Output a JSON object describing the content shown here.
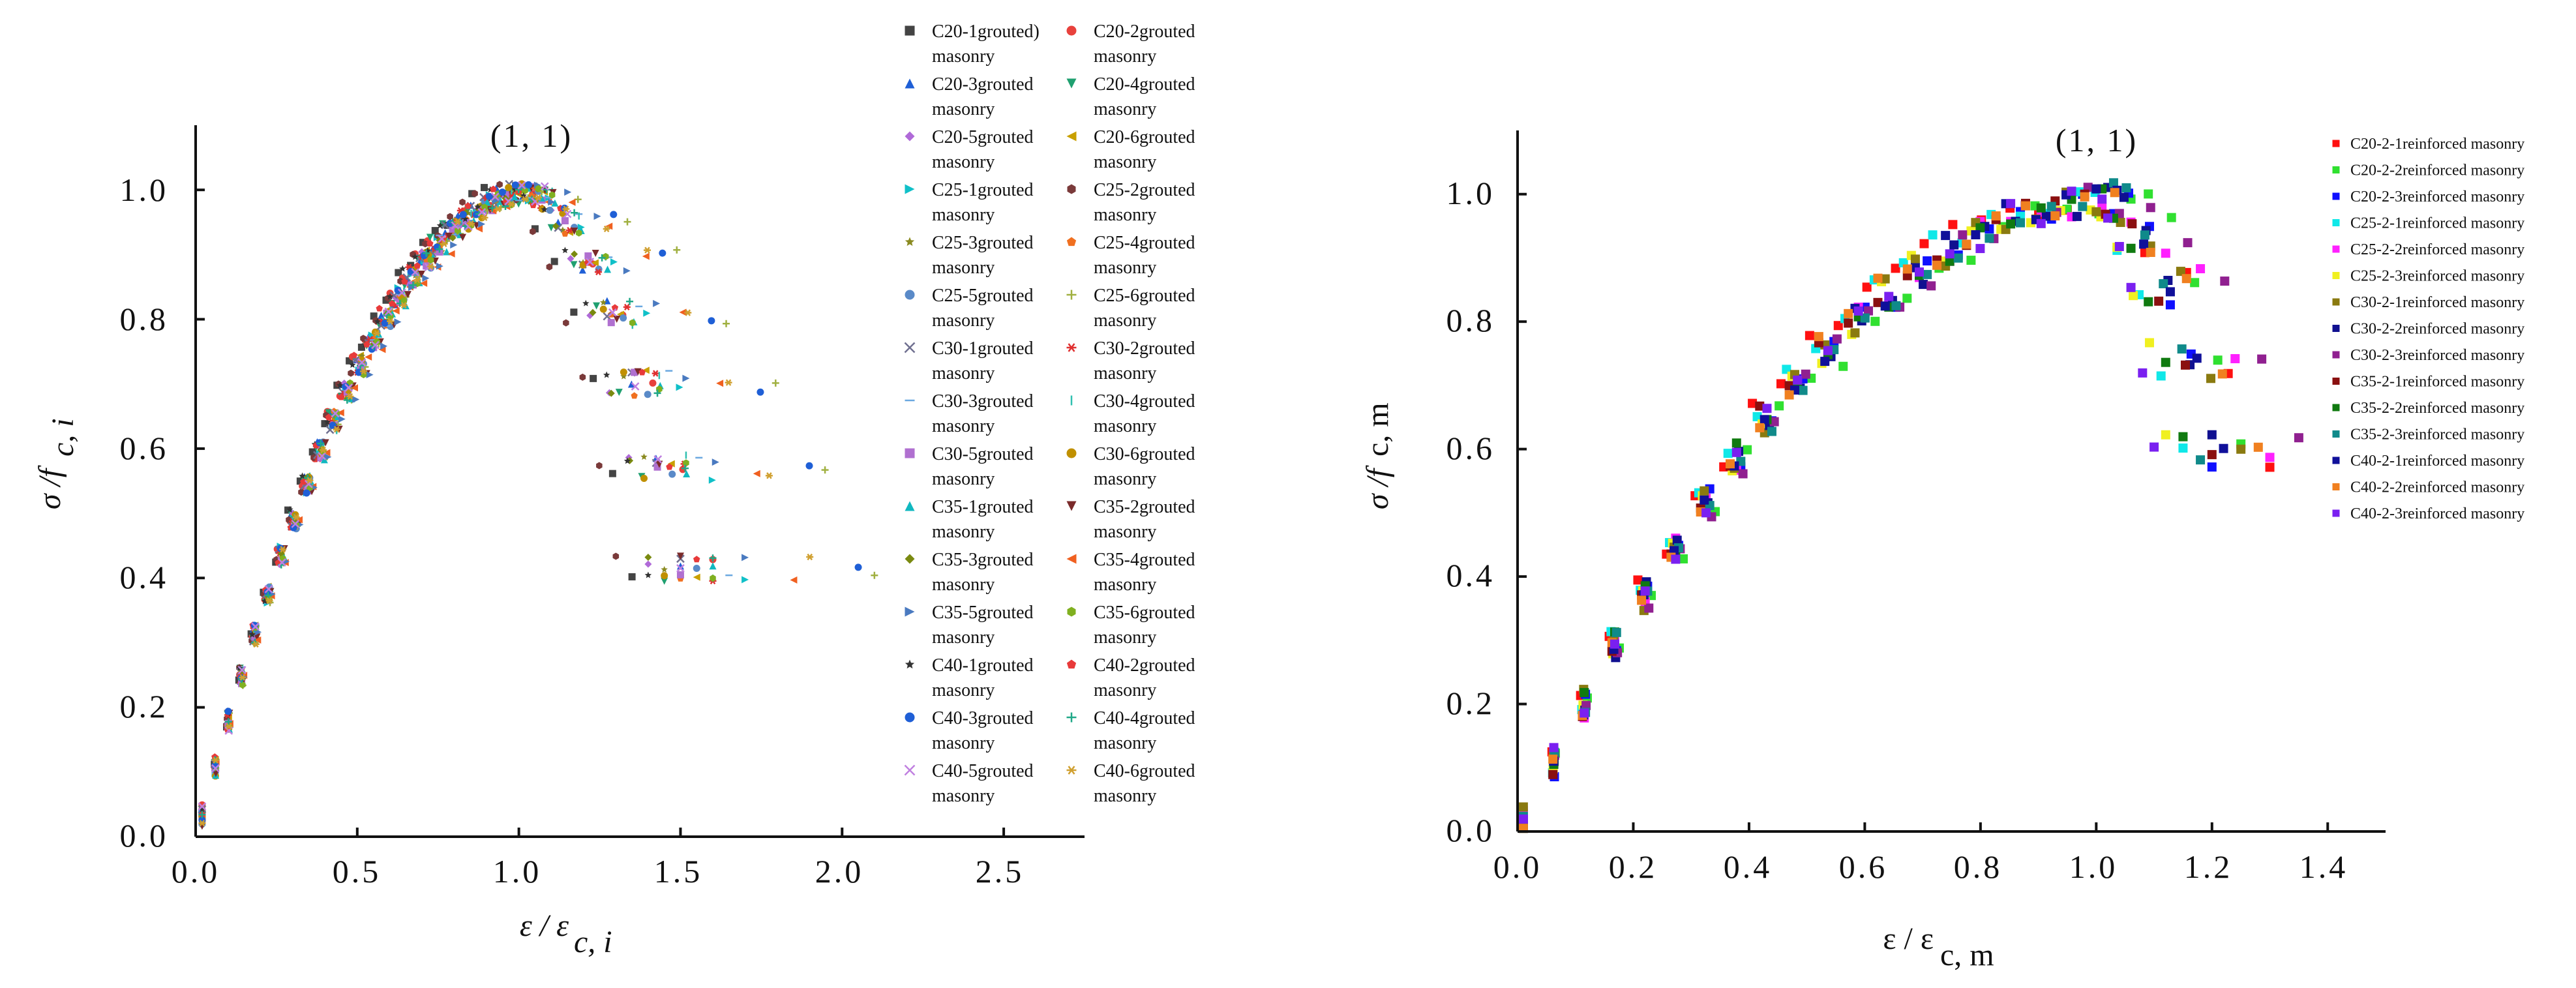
{
  "chart_data": [
    {
      "type": "scatter",
      "title": "(1, 1)",
      "xlabel": "ε / ε",
      "xlabel_sub": "c, i",
      "ylabel": "σ /f",
      "ylabel_sub": "c, i",
      "xlim": [
        0,
        2.75
      ],
      "ylim": [
        0,
        1.1
      ],
      "xticks": [
        "0.0",
        "0.5",
        "1.0",
        "1.5",
        "2.0",
        "2.5"
      ],
      "xtick_values": [
        0,
        0.5,
        1.0,
        1.5,
        2.0,
        2.5
      ],
      "yticks": [
        "0.0",
        "0.2",
        "0.4",
        "0.6",
        "0.8",
        "1.0"
      ],
      "ytick_values": [
        0,
        0.2,
        0.4,
        0.6,
        0.8,
        1.0
      ],
      "legend_position": "right, two columns",
      "series": [
        {
          "name": "C20-1grouted)",
          "line2": "masonry",
          "color": "#444444",
          "marker": "square",
          "peak": 0.93,
          "drop": 1.35
        },
        {
          "name": "C20-2grouted",
          "line2": "masonry",
          "color": "#e8413c",
          "marker": "circle",
          "peak": 0.95,
          "drop": 1.6
        },
        {
          "name": "C20-3grouted",
          "line2": "masonry",
          "color": "#1f5fd6",
          "marker": "triangle-up",
          "peak": 0.97,
          "drop": 1.5
        },
        {
          "name": "C20-4grouted",
          "line2": "masonry",
          "color": "#20a070",
          "marker": "triangle-down",
          "peak": 0.96,
          "drop": 1.45
        },
        {
          "name": "C20-5grouted",
          "line2": "masonry",
          "color": "#b06ad8",
          "marker": "diamond",
          "peak": 0.98,
          "drop": 1.4
        },
        {
          "name": "C20-6grouted",
          "line2": "masonry",
          "color": "#c9a000",
          "marker": "triangle-left",
          "peak": 1.0,
          "drop": 1.55
        },
        {
          "name": "C25-1grouted",
          "line2": "masonry",
          "color": "#10c0c8",
          "marker": "triangle-right",
          "peak": 0.99,
          "drop": 1.7
        },
        {
          "name": "C25-2grouted",
          "line2": "masonry",
          "color": "#7a3a3a",
          "marker": "hexagon",
          "peak": 0.94,
          "drop": 1.3
        },
        {
          "name": "C25-3grouted",
          "line2": "masonry",
          "color": "#8a8a20",
          "marker": "star",
          "peak": 1.01,
          "drop": 1.45
        },
        {
          "name": "C25-4grouted",
          "line2": "masonry",
          "color": "#f07020",
          "marker": "pentagon",
          "peak": 1.0,
          "drop": 1.5
        },
        {
          "name": "C25-5grouted",
          "line2": "masonry",
          "color": "#5a8ac8",
          "marker": "circle",
          "peak": 1.02,
          "drop": 1.55
        },
        {
          "name": "C25-6grouted",
          "line2": "masonry",
          "color": "#a0b040",
          "marker": "plus",
          "peak": 1.03,
          "drop": 2.1
        },
        {
          "name": "C30-1grouted",
          "line2": "masonry",
          "color": "#707090",
          "marker": "x",
          "peak": 0.97,
          "drop": 1.5
        },
        {
          "name": "C30-2grouted",
          "line2": "masonry",
          "color": "#e03030",
          "marker": "asterisk",
          "peak": 0.98,
          "drop": 1.6
        },
        {
          "name": "C30-3grouted",
          "line2": "masonry",
          "color": "#6aa8e0",
          "marker": "hline",
          "peak": 1.0,
          "drop": 1.65
        },
        {
          "name": "C30-4grouted",
          "line2": "masonry",
          "color": "#30c0b0",
          "marker": "vline",
          "peak": 1.02,
          "drop": 1.6
        },
        {
          "name": "C30-5grouted",
          "line2": "masonry",
          "color": "#b070d0",
          "marker": "square",
          "peak": 1.0,
          "drop": 1.5
        },
        {
          "name": "C30-6grouted",
          "line2": "masonry",
          "color": "#c09000",
          "marker": "circle",
          "peak": 1.01,
          "drop": 1.45
        },
        {
          "name": "C35-1grouted",
          "line2": "masonry",
          "color": "#10b8c0",
          "marker": "triangle-up",
          "peak": 1.03,
          "drop": 1.6
        },
        {
          "name": "C35-2grouted",
          "line2": "masonry",
          "color": "#7a2a2a",
          "marker": "triangle-down",
          "peak": 1.04,
          "drop": 1.5
        },
        {
          "name": "C35-3grouted",
          "line2": "masonry",
          "color": "#7a8a10",
          "marker": "diamond",
          "peak": 1.0,
          "drop": 1.4
        },
        {
          "name": "C35-4grouted",
          "line2": "masonry",
          "color": "#f06020",
          "marker": "triangle-left",
          "peak": 1.05,
          "drop": 1.85
        },
        {
          "name": "C35-5grouted",
          "line2": "masonry",
          "color": "#4a7ac0",
          "marker": "triangle-right",
          "peak": 1.06,
          "drop": 1.7
        },
        {
          "name": "C35-6grouted",
          "line2": "masonry",
          "color": "#80b020",
          "marker": "hexagon",
          "peak": 1.02,
          "drop": 1.6
        },
        {
          "name": "C40-1grouted",
          "line2": "masonry",
          "color": "#333333",
          "marker": "star",
          "peak": 0.95,
          "drop": 1.4
        },
        {
          "name": "C40-2grouted",
          "line2": "masonry",
          "color": "#e83a3a",
          "marker": "pentagon",
          "peak": 0.96,
          "drop": 1.55
        },
        {
          "name": "C40-3grouted",
          "line2": "masonry",
          "color": "#1f5fd6",
          "marker": "circle",
          "peak": 0.99,
          "drop": 2.05
        },
        {
          "name": "C40-4grouted",
          "line2": "masonry",
          "color": "#20a888",
          "marker": "plus",
          "peak": 1.0,
          "drop": 1.6
        },
        {
          "name": "C40-5grouted",
          "line2": "masonry",
          "color": "#c080e0",
          "marker": "x",
          "peak": 1.01,
          "drop": 1.5
        },
        {
          "name": "C40-6grouted",
          "line2": "masonry",
          "color": "#d0a030",
          "marker": "asterisk",
          "peak": 1.02,
          "drop": 1.9
        }
      ]
    },
    {
      "type": "scatter",
      "title": "(1, 1)",
      "xlabel": "ε / ε",
      "xlabel_sub": "c, m",
      "ylabel": "σ /f",
      "ylabel_sub": "c, m",
      "xlim": [
        0,
        1.5
      ],
      "ylim": [
        0,
        1.1
      ],
      "xticks": [
        "0.0",
        "0.2",
        "0.4",
        "0.6",
        "0.8",
        "1.0",
        "1.2",
        "1.4"
      ],
      "xtick_values": [
        0,
        0.2,
        0.4,
        0.6,
        0.8,
        1.0,
        1.2,
        1.4
      ],
      "yticks": [
        "0.0",
        "0.2",
        "0.4",
        "0.6",
        "0.8",
        "1.0"
      ],
      "ytick_values": [
        0,
        0.2,
        0.4,
        0.6,
        0.8,
        1.0
      ],
      "legend_position": "top-right, one column",
      "series": [
        {
          "name": "C20-2-1reinforced masonry",
          "color": "#ff1010",
          "peak": 0.94,
          "drop": 1.3
        },
        {
          "name": "C20-2-2reinforced masonry",
          "color": "#30e030",
          "peak": 1.05,
          "drop": 1.25
        },
        {
          "name": "C20-2-3reinforced masonry",
          "color": "#1010ff",
          "peak": 1.02,
          "drop": 1.2
        },
        {
          "name": "C25-2-1reinforced masonry",
          "color": "#10e8e8",
          "peak": 0.96,
          "drop": 1.15
        },
        {
          "name": "C25-2-2reinforced masonry",
          "color": "#ff20ff",
          "peak": 1.0,
          "drop": 1.3
        },
        {
          "name": "C25-2-3reinforced masonry",
          "color": "#f0f020",
          "peak": 0.98,
          "drop": 1.12
        },
        {
          "name": "C30-2-1reinforced masonry",
          "color": "#8a7a10",
          "peak": 0.99,
          "drop": 1.25
        },
        {
          "name": "C30-2-2reinforced masonry",
          "color": "#101090",
          "peak": 1.01,
          "drop": 1.2
        },
        {
          "name": "C30-2-3reinforced masonry",
          "color": "#902090",
          "peak": 1.03,
          "drop": 1.35
        },
        {
          "name": "C35-2-1reinforced masonry",
          "color": "#8a1010",
          "peak": 0.97,
          "drop": 1.2
        },
        {
          "name": "C35-2-2reinforced masonry",
          "color": "#107a10",
          "peak": 1.0,
          "drop": 1.15
        },
        {
          "name": "C35-2-3reinforced masonry",
          "color": "#108a8a",
          "peak": 1.02,
          "drop": 1.18
        },
        {
          "name": "C40-2-1reinforced masonry",
          "color": "#10109a",
          "peak": 0.99,
          "drop": 1.22
        },
        {
          "name": "C40-2-2reinforced masonry",
          "color": "#f08020",
          "peak": 0.97,
          "drop": 1.28
        },
        {
          "name": "C40-2-3reinforced masonry",
          "color": "#7a20f0",
          "peak": 1.0,
          "drop": 1.1
        }
      ]
    }
  ]
}
